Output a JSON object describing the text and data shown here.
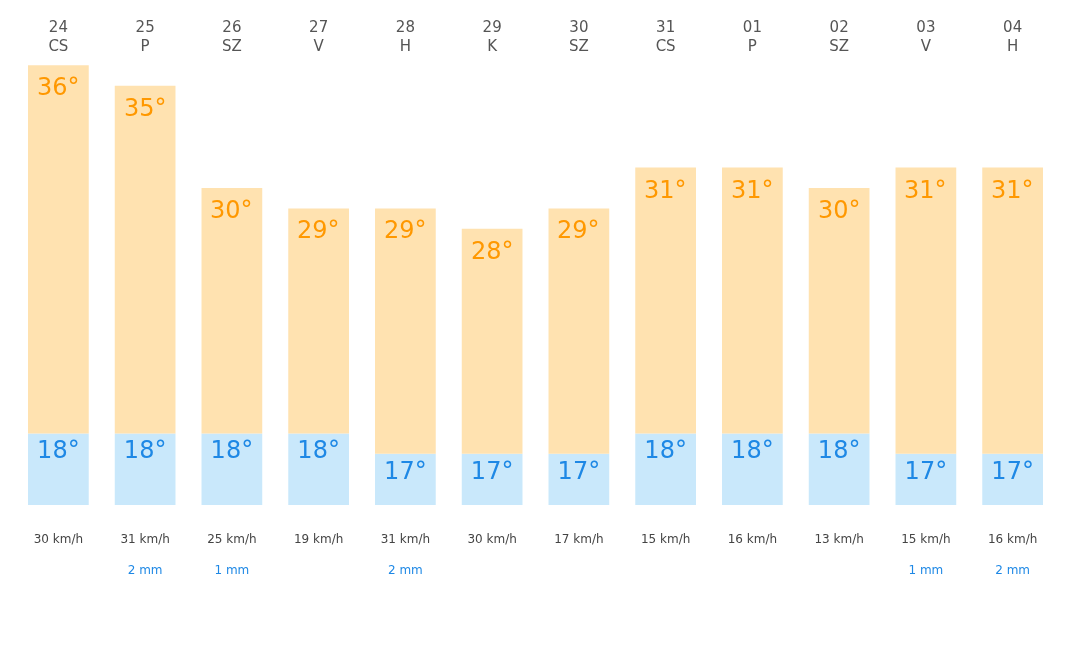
{
  "chart_data": [
    {
      "type": "bar",
      "stacked": true,
      "categories": [
        "24\nCS",
        "25\nP",
        "26\nSZ",
        "27\nV",
        "28\nH",
        "29\nK",
        "30\nSZ",
        "31\nCS",
        "01\nP",
        "02\nSZ",
        "03\nV",
        "04\nH"
      ],
      "series": [
        {
          "color": "#c9e8fb",
          "values": [
            18,
            18,
            18,
            18,
            17,
            17,
            17,
            18,
            18,
            18,
            17,
            17
          ],
          "value_labels": [
            "18°",
            "18°",
            "18°",
            "18°",
            "17°",
            "17°",
            "17°",
            "18°",
            "18°",
            "18°",
            "17°",
            "17°"
          ]
        },
        {
          "color": "#ffe2b0",
          "values": [
            18,
            17,
            12,
            11,
            12,
            11,
            12,
            13,
            13,
            12,
            14,
            14
          ]
        }
      ],
      "totals": [
        "36°",
        "35°",
        "30°",
        "29°",
        "29°",
        "28°",
        "29°",
        "31°",
        "31°",
        "30°",
        "31°",
        "31°"
      ],
      "tick_labels": "x"
    },
    {
      "type": "other",
      "categories": [
        "30 km/h",
        "31 km/h\n\n2 mm",
        "25 km/h\n\n1 mm",
        "19 km/h",
        "31 km/h\n\n2 mm",
        "30 km/h",
        "17 km/h",
        "15 km/h",
        "16 km/h",
        "13 km/h",
        "15 km/h\n\n1 mm",
        "16 km/h\n\n2 mm"
      ]
    }
  ]
}
